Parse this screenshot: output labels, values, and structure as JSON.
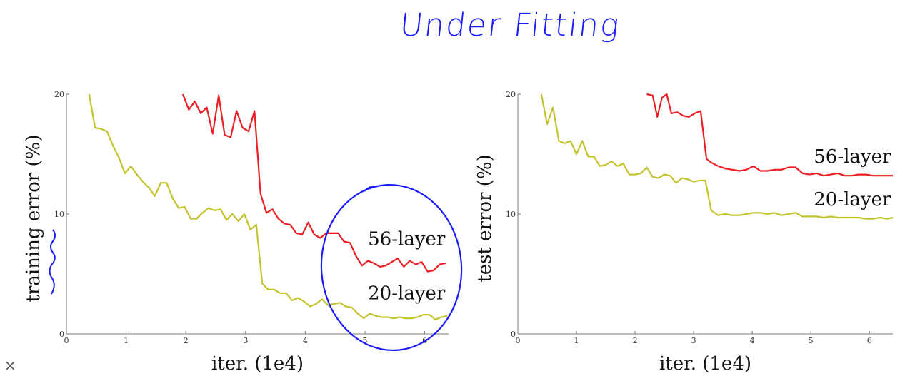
{
  "annotation": {
    "title": "Under Fitting",
    "corner_mark": "×"
  },
  "colors": {
    "layer56": "#ee1d24",
    "layer20": "#c3c32c",
    "ink": "#1a1aff",
    "axis": "#777777"
  },
  "chart_data": [
    {
      "type": "line",
      "title": "",
      "xlabel": "iter. (1e4)",
      "ylabel": "training error (%)",
      "xlim": [
        0,
        6.4
      ],
      "ylim": [
        0,
        20
      ],
      "xticks": [
        "0",
        "1",
        "2",
        "3",
        "4",
        "5",
        "6"
      ],
      "yticks": [
        "0",
        "10",
        "20"
      ],
      "labels": [
        {
          "text": "56-layer",
          "x": 5.05,
          "y": 7.4
        },
        {
          "text": "20-layer",
          "x": 5.05,
          "y": 2.9
        }
      ],
      "series": [
        {
          "name": "56-layer",
          "color": "#ee1d24",
          "x": [
            1.95,
            2.05,
            2.15,
            2.25,
            2.35,
            2.45,
            2.55,
            2.65,
            2.75,
            2.85,
            2.95,
            3.05,
            3.15,
            3.25,
            3.35,
            3.45,
            3.55,
            3.65,
            3.75,
            3.85,
            3.95,
            4.05,
            4.15,
            4.25,
            4.35,
            4.45,
            4.55,
            4.65,
            4.75,
            4.85,
            4.95,
            5.05,
            5.15,
            5.25,
            5.35,
            5.45,
            5.55,
            5.65,
            5.75,
            5.85,
            5.95,
            6.05,
            6.15,
            6.25,
            6.35
          ],
          "y": [
            20.0,
            18.7,
            19.4,
            18.4,
            18.9,
            16.7,
            19.9,
            16.6,
            16.4,
            18.6,
            17.2,
            16.9,
            18.6,
            11.7,
            10.1,
            10.4,
            9.6,
            9.2,
            9.1,
            8.4,
            8.3,
            9.3,
            8.3,
            8.0,
            8.4,
            8.4,
            8.4,
            7.7,
            7.6,
            6.5,
            5.7,
            6.1,
            5.9,
            5.6,
            5.7,
            6.0,
            6.3,
            5.6,
            6.1,
            5.8,
            6.0,
            5.2,
            5.3,
            5.8,
            5.9
          ]
        },
        {
          "name": "20-layer",
          "color": "#c3c32c",
          "x": [
            0.38,
            0.48,
            0.58,
            0.68,
            0.78,
            0.88,
            0.98,
            1.08,
            1.18,
            1.28,
            1.38,
            1.48,
            1.58,
            1.68,
            1.78,
            1.88,
            1.98,
            2.08,
            2.18,
            2.28,
            2.38,
            2.48,
            2.58,
            2.68,
            2.78,
            2.88,
            2.98,
            3.08,
            3.18,
            3.28,
            3.38,
            3.48,
            3.58,
            3.68,
            3.78,
            3.88,
            3.98,
            4.08,
            4.18,
            4.28,
            4.38,
            4.48,
            4.58,
            4.68,
            4.78,
            4.88,
            4.98,
            5.08,
            5.18,
            5.28,
            5.38,
            5.48,
            5.58,
            5.68,
            5.78,
            5.88,
            5.98,
            6.08,
            6.18,
            6.28,
            6.38
          ],
          "y": [
            20.0,
            17.2,
            17.1,
            16.9,
            15.7,
            14.7,
            13.4,
            14.0,
            13.3,
            12.7,
            12.2,
            11.5,
            12.6,
            12.6,
            11.3,
            10.5,
            10.6,
            9.6,
            9.6,
            10.1,
            10.5,
            10.3,
            10.4,
            9.5,
            10.0,
            9.4,
            10.0,
            8.7,
            9.1,
            4.2,
            3.7,
            3.7,
            3.4,
            3.4,
            2.8,
            3.0,
            2.7,
            2.3,
            2.5,
            2.9,
            2.4,
            2.5,
            2.6,
            2.3,
            2.2,
            1.7,
            1.3,
            1.7,
            1.5,
            1.4,
            1.4,
            1.3,
            1.4,
            1.3,
            1.3,
            1.4,
            1.6,
            1.6,
            1.2,
            1.4,
            1.5
          ]
        }
      ]
    },
    {
      "type": "line",
      "title": "",
      "xlabel": "iter. (1e4)",
      "ylabel": "test error (%)",
      "xlim": [
        0,
        6.4
      ],
      "ylim": [
        0,
        20
      ],
      "xticks": [
        "0",
        "1",
        "2",
        "3",
        "4",
        "5",
        "6"
      ],
      "yticks": [
        "0",
        "10",
        "20"
      ],
      "labels": [
        {
          "text": "56-layer",
          "x": 5.05,
          "y": 14.3
        },
        {
          "text": "20-layer",
          "x": 5.05,
          "y": 10.7
        }
      ],
      "series": [
        {
          "name": "56-layer",
          "color": "#ee1d24",
          "x": [
            2.2,
            2.3,
            2.38,
            2.46,
            2.54,
            2.62,
            2.72,
            2.82,
            2.92,
            3.02,
            3.12,
            3.22,
            3.3,
            3.42,
            3.54,
            3.66,
            3.78,
            3.9,
            4.02,
            4.14,
            4.26,
            4.38,
            4.5,
            4.62,
            4.74,
            4.86,
            4.98,
            5.1,
            5.22,
            5.34,
            5.46,
            5.58,
            5.7,
            5.82,
            5.94,
            6.06,
            6.18,
            6.3,
            6.4
          ],
          "y": [
            20.0,
            19.9,
            18.1,
            19.7,
            20.0,
            18.4,
            18.5,
            18.2,
            18.1,
            18.4,
            18.6,
            14.6,
            14.3,
            14.0,
            13.8,
            13.7,
            13.6,
            13.7,
            14.0,
            13.6,
            13.6,
            13.7,
            13.7,
            13.9,
            13.9,
            13.4,
            13.3,
            13.4,
            13.2,
            13.3,
            13.4,
            13.2,
            13.2,
            13.3,
            13.3,
            13.2,
            13.2,
            13.2,
            13.2
          ]
        },
        {
          "name": "20-layer",
          "color": "#c3c32c",
          "x": [
            0.4,
            0.5,
            0.6,
            0.7,
            0.8,
            0.9,
            1.0,
            1.1,
            1.2,
            1.3,
            1.4,
            1.5,
            1.6,
            1.7,
            1.8,
            1.9,
            2.0,
            2.1,
            2.2,
            2.3,
            2.4,
            2.5,
            2.6,
            2.7,
            2.8,
            2.9,
            3.0,
            3.1,
            3.2,
            3.3,
            3.42,
            3.54,
            3.66,
            3.78,
            3.9,
            4.02,
            4.14,
            4.26,
            4.38,
            4.5,
            4.62,
            4.74,
            4.86,
            4.98,
            5.1,
            5.22,
            5.34,
            5.46,
            5.58,
            5.7,
            5.82,
            5.94,
            6.06,
            6.18,
            6.3,
            6.4
          ],
          "y": [
            20.0,
            17.5,
            18.9,
            16.1,
            15.9,
            16.1,
            15.0,
            16.1,
            14.8,
            14.8,
            14.0,
            14.1,
            14.4,
            14.0,
            14.2,
            13.3,
            13.3,
            13.4,
            13.9,
            13.1,
            13.0,
            13.3,
            13.2,
            12.6,
            13.0,
            12.9,
            12.7,
            12.8,
            12.8,
            10.3,
            9.9,
            10.0,
            9.9,
            9.9,
            10.0,
            10.1,
            10.1,
            10.0,
            10.1,
            9.9,
            10.0,
            10.1,
            9.8,
            9.8,
            9.8,
            9.7,
            9.8,
            9.7,
            9.7,
            9.7,
            9.7,
            9.6,
            9.6,
            9.7,
            9.6,
            9.7
          ]
        }
      ]
    }
  ]
}
